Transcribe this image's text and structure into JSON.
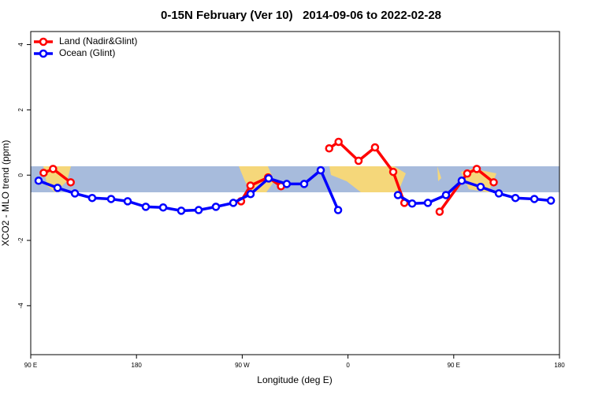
{
  "chart_data": {
    "type": "line",
    "title": "0-15N February (Ver 10)   2014-09-06 to 2022-02-28",
    "x_label": "Longitude (deg E)",
    "y_label": "XCO2 - MLO trend (ppm)",
    "xlim": [
      90,
      540
    ],
    "ylim": [
      -5.5,
      4.4
    ],
    "xticks": [
      {
        "value": 90,
        "label": "90 E"
      },
      180,
      {
        "value": 270,
        "label": "90 W"
      },
      {
        "value": 360,
        "label": "0"
      },
      {
        "value": 450,
        "label": "90 E"
      },
      180
    ],
    "yticks": [
      4,
      2,
      0,
      -2,
      -4
    ],
    "legend": "top-left",
    "series": [
      {
        "name": "Land (Nadir&Glint)",
        "color": "#ff0000",
        "x": [
          101,
          109,
          124,
          null,
          269,
          277,
          292,
          303,
          null,
          344,
          352,
          369,
          383,
          398.5,
          408,
          null,
          438,
          461.5,
          469.6,
          484
        ],
        "values": [
          0.07,
          0.19,
          -0.22,
          null,
          -0.8,
          -0.32,
          -0.07,
          -0.34,
          null,
          0.82,
          1.02,
          0.44,
          0.85,
          0.1,
          -0.85,
          null,
          -1.12,
          0.05,
          0.19,
          -0.22
        ]
      },
      {
        "name": "Ocean (Glint)",
        "color": "#0000ff",
        "x": [
          96.7,
          112.8,
          127.6,
          142.3,
          158.4,
          172.5,
          187.9,
          202.7,
          218.1,
          232.9,
          247.6,
          262.4,
          277.1,
          292.5,
          307.9,
          322.7,
          336.8,
          351.6,
          null,
          402.5,
          414.6,
          428,
          443.4,
          456.8,
          472.9,
          488.4,
          502.5,
          518.6,
          532.7
        ],
        "values": [
          -0.17,
          -0.39,
          -0.56,
          -0.7,
          -0.73,
          -0.8,
          -0.97,
          -0.99,
          -1.09,
          -1.07,
          -0.97,
          -0.85,
          -0.58,
          -0.1,
          -0.27,
          -0.27,
          0.15,
          -1.07,
          null,
          -0.61,
          -0.87,
          -0.85,
          -0.61,
          -0.17,
          -0.36,
          -0.56,
          -0.7,
          -0.73,
          -0.78
        ]
      }
    ]
  }
}
